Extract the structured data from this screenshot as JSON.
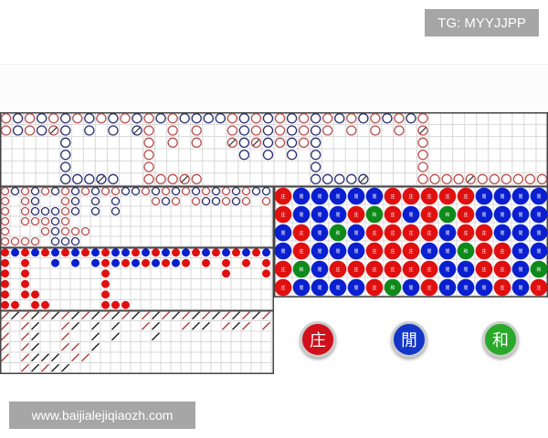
{
  "header": {
    "tg_label": "TG: MYYJJPP"
  },
  "watermark": "www.baijialejiqiaozh.com",
  "colors": {
    "banker": "#e01010",
    "player": "#0a1fd0",
    "tie": "#0e8a1a",
    "road_red": "#b85050",
    "road_blue": "#2a2f6e",
    "grid": "#d8d8d8"
  },
  "legend": {
    "R": "banker",
    "B": "player",
    "G": "tie",
    "lowercase": "with tie slash",
    ".": "empty"
  },
  "bead_labels": {
    "R": "庄",
    "B": "閒",
    "G": "和"
  },
  "buttons": [
    {
      "label": "庄",
      "color": "#d0101a"
    },
    {
      "label": "閒",
      "color": "#1236c8"
    },
    {
      "label": "和",
      "color": "#2aa82a"
    }
  ],
  "big_road": [
    "RBRBRBRBRBRBRBRBBBBRBRBRBRBRBRBRBRBR..........",
    "RBRBrB.B.B.bR.R.R..RBRBRBRBR.R.R.R.r..........",
    ".....B......R.R.R..rBrBRBRB........R..........",
    ".....B......R.......B.B.B.B........R..........",
    ".....B......R.............B........R..........",
    ".....BBBbB..RRRrR.........BBBBb....RRRRrRRRRRR"
  ],
  "big_eye_road": [
    "RBRBRBRBRBRRBBRBRBRBRBRBRBB",
    "R.RB..RB.B.B...RBR.RBBRBR.R",
    "R.RBBBRB.B.B",
    "R.RRRBR",
    "R...RBRRR",
    "RRRR.BBB"
  ],
  "small_road": [
    "RBRBRBRBRBRBBRBRBRBRBRBRBRB",
    "R.R..B.B.BRBRBRBRBR.R.R.R.R",
    "R.R.......R...........R...R",
    "R.R.......R",
    "R.RR......R",
    "RR.RR.....RRR"
  ],
  "cockroach_road": [
    "RBRBRBRBRBRBRBRBRBRBRBRBRBR",
    "R.RB..RB.B.B..RB..RBB.RBR.R",
    "R.RB..R..B.B...B",
    "R.RB..RR.B",
    "R.RBBB.RR",
    "..RBRBB"
  ],
  "bead_plate": [
    "RBBBBBRRRRRBBBB",
    "RBBBRGRBRGRBBBB",
    "BRBGBRRRRBRRBBB",
    "BRBBBRRRBBGRRBB",
    "RGBRRRRRRBBRRBG",
    "RBBBBRGBRBBBRBR"
  ]
}
